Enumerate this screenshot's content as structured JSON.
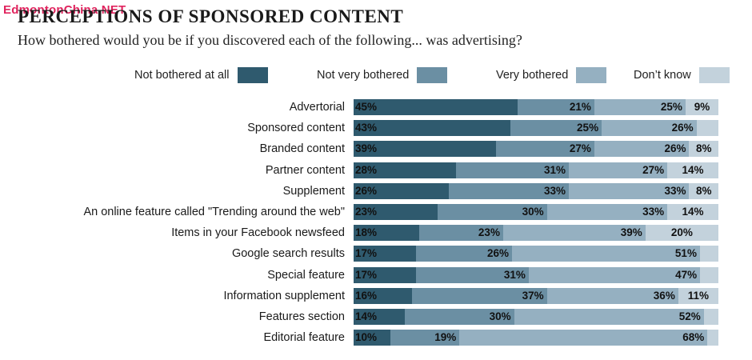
{
  "watermark": "EdmontonChina.NET",
  "title": "PERCEPTIONS OF SPONSORED CONTENT",
  "subtitle": "How bothered would you be if you discovered each of the following... was advertising?",
  "colors": {
    "not_bothered_at_all": "#2f5a6e",
    "not_very_bothered": "#6b8fa3",
    "very_bothered": "#95b0c1",
    "dont_know": "#c3d2dc"
  },
  "chart_data": {
    "type": "bar",
    "orientation": "horizontal",
    "stacked": true,
    "title": "PERCEPTIONS OF SPONSORED CONTENT",
    "subtitle": "How bothered would you be if you discovered each of the following... was advertising?",
    "legend_position": "top",
    "categories": [
      "Advertorial",
      "Sponsored content",
      "Branded content",
      "Partner content",
      "Supplement",
      "An online feature called \"Trending around the web\"",
      "Items in your Facebook newsfeed",
      "Google search results",
      "Special feature",
      "Information supplement",
      "Features section",
      "Editorial feature"
    ],
    "series": [
      {
        "name": "Not bothered at all",
        "values": [
          45,
          43,
          39,
          28,
          26,
          23,
          18,
          17,
          17,
          16,
          14,
          10
        ]
      },
      {
        "name": "Not very bothered",
        "values": [
          21,
          25,
          27,
          31,
          33,
          30,
          23,
          26,
          31,
          37,
          30,
          19
        ]
      },
      {
        "name": "Very bothered",
        "values": [
          25,
          26,
          26,
          27,
          33,
          33,
          39,
          51,
          47,
          36,
          52,
          68
        ]
      },
      {
        "name": "Don’t know",
        "values": [
          9,
          6,
          8,
          14,
          8,
          14,
          20,
          5,
          5,
          11,
          4,
          3
        ]
      }
    ],
    "value_labels": [
      [
        "45%",
        "21%",
        "25%",
        "9%"
      ],
      [
        "43%",
        "25%",
        "26%",
        ""
      ],
      [
        "39%",
        "27%",
        "26%",
        "8%"
      ],
      [
        "28%",
        "31%",
        "27%",
        "14%"
      ],
      [
        "26%",
        "33%",
        "33%",
        "8%"
      ],
      [
        "23%",
        "30%",
        "33%",
        "14%"
      ],
      [
        "18%",
        "23%",
        "39%",
        "20%"
      ],
      [
        "17%",
        "26%",
        "51%",
        ""
      ],
      [
        "17%",
        "31%",
        "47%",
        ""
      ],
      [
        "16%",
        "37%",
        "36%",
        "11%"
      ],
      [
        "14%",
        "30%",
        "52%",
        ""
      ],
      [
        "10%",
        "19%",
        "68%",
        ""
      ]
    ],
    "xlim": [
      0,
      100
    ],
    "grid": false
  }
}
